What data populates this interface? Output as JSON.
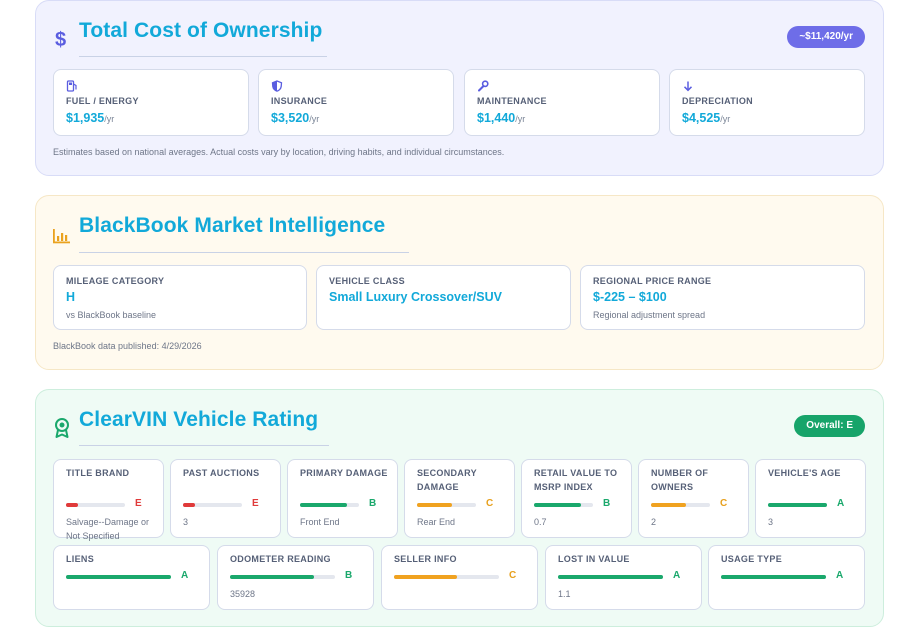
{
  "tco": {
    "title": "Total Cost of Ownership",
    "total_pill": "~$11,420/yr",
    "items": [
      {
        "label": "FUEL / ENERGY",
        "value": "$1,935",
        "unit": "/yr",
        "icon": "fuel-pump-icon"
      },
      {
        "label": "INSURANCE",
        "value": "$3,520",
        "unit": "/yr",
        "icon": "shield-icon"
      },
      {
        "label": "MAINTENANCE",
        "value": "$1,440",
        "unit": "/yr",
        "icon": "wrench-icon"
      },
      {
        "label": "DEPRECIATION",
        "value": "$4,525",
        "unit": "/yr",
        "icon": "arrow-down-icon"
      }
    ],
    "note": "Estimates based on national averages. Actual costs vary by location, driving habits, and individual circumstances."
  },
  "blackbook": {
    "title": "BlackBook Market Intelligence",
    "items": [
      {
        "label": "MILEAGE CATEGORY",
        "value": "H",
        "sub": "vs BlackBook baseline"
      },
      {
        "label": "VEHICLE CLASS",
        "value": "Small Luxury Crossover/SUV",
        "sub": ""
      },
      {
        "label": "REGIONAL PRICE RANGE",
        "value": "$-225 – $100",
        "sub": "Regional adjustment spread"
      }
    ],
    "note": "BlackBook data published: 4/29/2026"
  },
  "clearvin": {
    "title": "ClearVIN Vehicle Rating",
    "overall_pill": "Overall: E",
    "row1": [
      {
        "label": "TITLE BRAND",
        "grade": "E",
        "level": 0.2,
        "color": "red",
        "sub": "Salvage--Damage or Not Specified"
      },
      {
        "label": "PAST AUCTIONS",
        "grade": "E",
        "level": 0.2,
        "color": "red",
        "sub": "3"
      },
      {
        "label": "PRIMARY DAMAGE",
        "grade": "B",
        "level": 0.8,
        "color": "green",
        "sub": "Front End"
      },
      {
        "label": "SECONDARY DAMAGE",
        "grade": "C",
        "level": 0.6,
        "color": "amber",
        "sub": "Rear End"
      },
      {
        "label": "RETAIL VALUE TO MSRP INDEX",
        "grade": "B",
        "level": 0.8,
        "color": "green",
        "sub": "0.7"
      },
      {
        "label": "NUMBER OF OWNERS",
        "grade": "C",
        "level": 0.6,
        "color": "amber",
        "sub": "2"
      },
      {
        "label": "VEHICLE'S AGE",
        "grade": "A",
        "level": 1.0,
        "color": "green",
        "sub": "3"
      }
    ],
    "row2": [
      {
        "label": "LIENS",
        "grade": "A",
        "level": 1.0,
        "color": "green",
        "sub": ""
      },
      {
        "label": "ODOMETER READING",
        "grade": "B",
        "level": 0.8,
        "color": "green",
        "sub": "35928"
      },
      {
        "label": "SELLER INFO",
        "grade": "C",
        "level": 0.6,
        "color": "amber",
        "sub": ""
      },
      {
        "label": "LOST IN VALUE",
        "grade": "A",
        "level": 1.0,
        "color": "green",
        "sub": "1.1"
      },
      {
        "label": "USAGE TYPE",
        "grade": "A",
        "level": 1.0,
        "color": "green",
        "sub": ""
      }
    ]
  }
}
